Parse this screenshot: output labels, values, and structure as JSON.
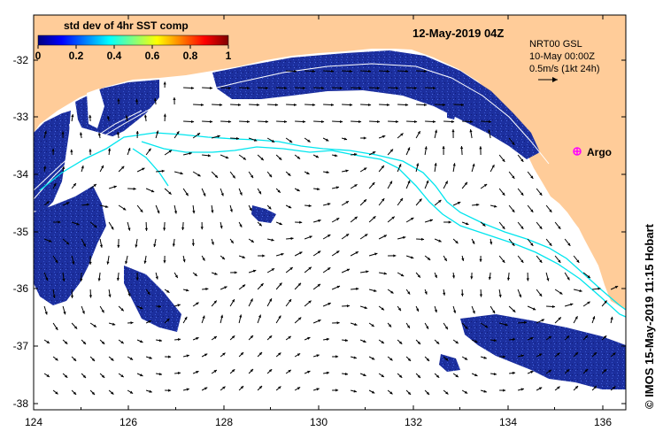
{
  "title": "12-May-2019 04Z",
  "colorbar": {
    "title": "std dev of 4hr SST comp",
    "ticks": [
      "0",
      "0.2",
      "0.4",
      "0.6",
      "0.8",
      "1"
    ],
    "colors": [
      "#00007f",
      "#0000ff",
      "#0080ff",
      "#00ffff",
      "#80ff80",
      "#ffff00",
      "#ff8000",
      "#ff0000",
      "#7f0000"
    ]
  },
  "legend": {
    "line1": "NRT00 GSL",
    "line2": "10-May 00:00Z",
    "line3": "0.5m/s (1kt 24h)"
  },
  "argo": {
    "label": "Argo",
    "color": "#ff00ff"
  },
  "credit": "© IMOS 15-May-2019 11:15 Hobart",
  "x_ticks": [
    "124",
    "126",
    "128",
    "130",
    "132",
    "134",
    "136"
  ],
  "y_ticks": [
    "-32",
    "-33",
    "-34",
    "-35",
    "-36",
    "-37",
    "-38"
  ],
  "colors": {
    "land": "#ffcc99",
    "sst_patch": "#1a2a9a",
    "contour": "#00e5ee",
    "arrow": "#000000"
  }
}
